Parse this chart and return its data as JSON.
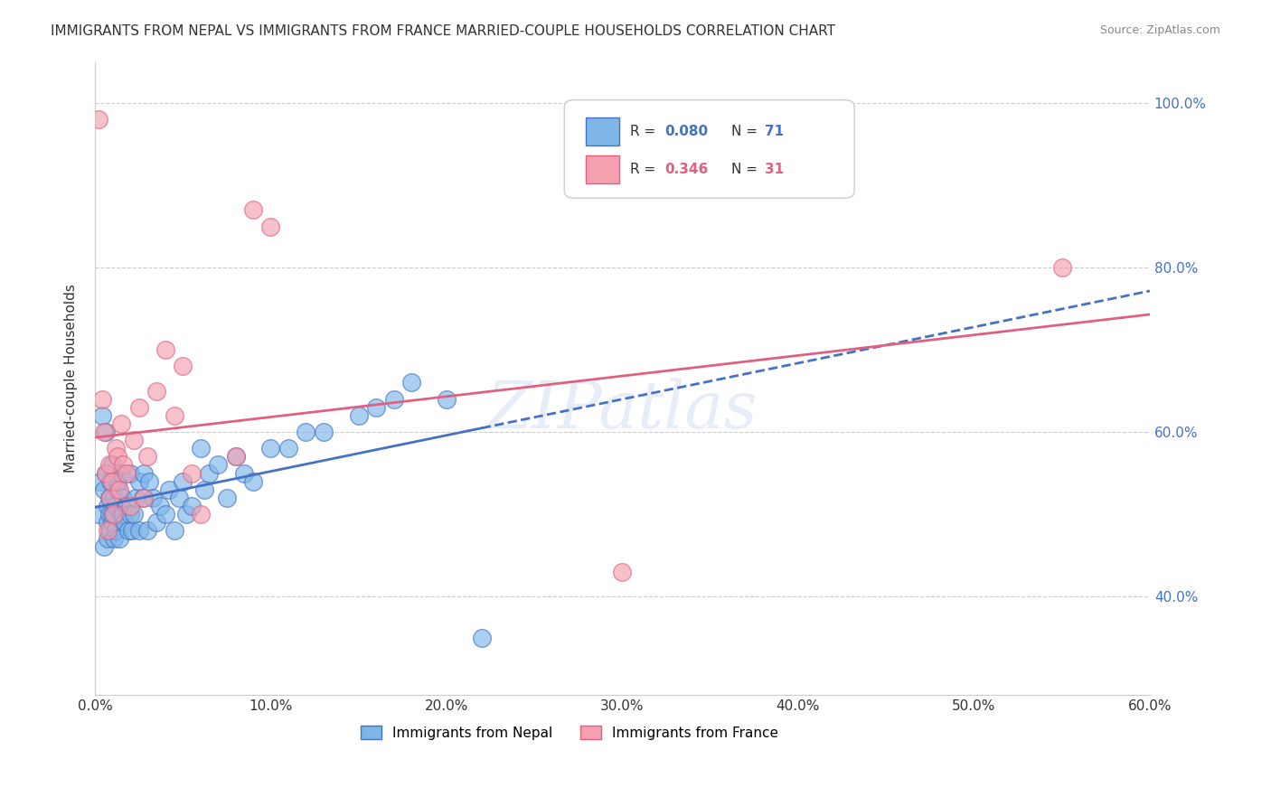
{
  "title": "IMMIGRANTS FROM NEPAL VS IMMIGRANTS FROM FRANCE MARRIED-COUPLE HOUSEHOLDS CORRELATION CHART",
  "source": "Source: ZipAtlas.com",
  "ylabel_left": "Married-couple Households",
  "x_tick_labels": [
    "0.0%",
    "10.0%",
    "20.0%",
    "30.0%",
    "40.0%",
    "50.0%",
    "60.0%"
  ],
  "y_tick_labels_right": [
    "40.0%",
    "60.0%",
    "80.0%",
    "100.0%"
  ],
  "xlim": [
    0.0,
    0.6
  ],
  "ylim": [
    0.28,
    1.05
  ],
  "nepal_color": "#7EB6E8",
  "france_color": "#F4A0B0",
  "nepal_line_color": "#4472C4",
  "france_line_color": "#E06080",
  "watermark": "ZIPatlas",
  "legend_nepal_r": "0.080",
  "legend_nepal_n": "71",
  "legend_france_r": "0.346",
  "legend_france_n": "31",
  "nepal_x": [
    0.002,
    0.003,
    0.004,
    0.005,
    0.005,
    0.006,
    0.006,
    0.007,
    0.007,
    0.007,
    0.008,
    0.008,
    0.008,
    0.009,
    0.009,
    0.01,
    0.01,
    0.01,
    0.011,
    0.011,
    0.012,
    0.012,
    0.013,
    0.013,
    0.014,
    0.015,
    0.015,
    0.016,
    0.016,
    0.017,
    0.018,
    0.019,
    0.02,
    0.02,
    0.021,
    0.022,
    0.023,
    0.025,
    0.025,
    0.027,
    0.028,
    0.03,
    0.031,
    0.033,
    0.035,
    0.037,
    0.04,
    0.042,
    0.045,
    0.048,
    0.05,
    0.052,
    0.055,
    0.06,
    0.062,
    0.065,
    0.07,
    0.075,
    0.08,
    0.085,
    0.09,
    0.1,
    0.11,
    0.12,
    0.13,
    0.15,
    0.16,
    0.17,
    0.18,
    0.2,
    0.22
  ],
  "nepal_y": [
    0.5,
    0.54,
    0.62,
    0.53,
    0.46,
    0.6,
    0.55,
    0.49,
    0.51,
    0.47,
    0.48,
    0.52,
    0.5,
    0.48,
    0.54,
    0.49,
    0.5,
    0.56,
    0.47,
    0.52,
    0.51,
    0.48,
    0.53,
    0.54,
    0.47,
    0.5,
    0.55,
    0.5,
    0.52,
    0.49,
    0.51,
    0.48,
    0.5,
    0.55,
    0.48,
    0.5,
    0.52,
    0.54,
    0.48,
    0.52,
    0.55,
    0.48,
    0.54,
    0.52,
    0.49,
    0.51,
    0.5,
    0.53,
    0.48,
    0.52,
    0.54,
    0.5,
    0.51,
    0.58,
    0.53,
    0.55,
    0.56,
    0.52,
    0.57,
    0.55,
    0.54,
    0.58,
    0.58,
    0.6,
    0.6,
    0.62,
    0.63,
    0.64,
    0.66,
    0.64,
    0.35
  ],
  "france_x": [
    0.002,
    0.004,
    0.005,
    0.006,
    0.007,
    0.008,
    0.009,
    0.01,
    0.011,
    0.012,
    0.013,
    0.014,
    0.015,
    0.016,
    0.018,
    0.02,
    0.022,
    0.025,
    0.028,
    0.03,
    0.035,
    0.04,
    0.045,
    0.05,
    0.055,
    0.06,
    0.08,
    0.09,
    0.1,
    0.3,
    0.55
  ],
  "france_y": [
    0.98,
    0.64,
    0.6,
    0.55,
    0.48,
    0.56,
    0.52,
    0.54,
    0.5,
    0.58,
    0.57,
    0.53,
    0.61,
    0.56,
    0.55,
    0.51,
    0.59,
    0.63,
    0.52,
    0.57,
    0.65,
    0.7,
    0.62,
    0.68,
    0.55,
    0.5,
    0.57,
    0.87,
    0.85,
    0.43,
    0.8
  ],
  "grid_color": "#CCCCCC",
  "background_color": "#FFFFFF"
}
